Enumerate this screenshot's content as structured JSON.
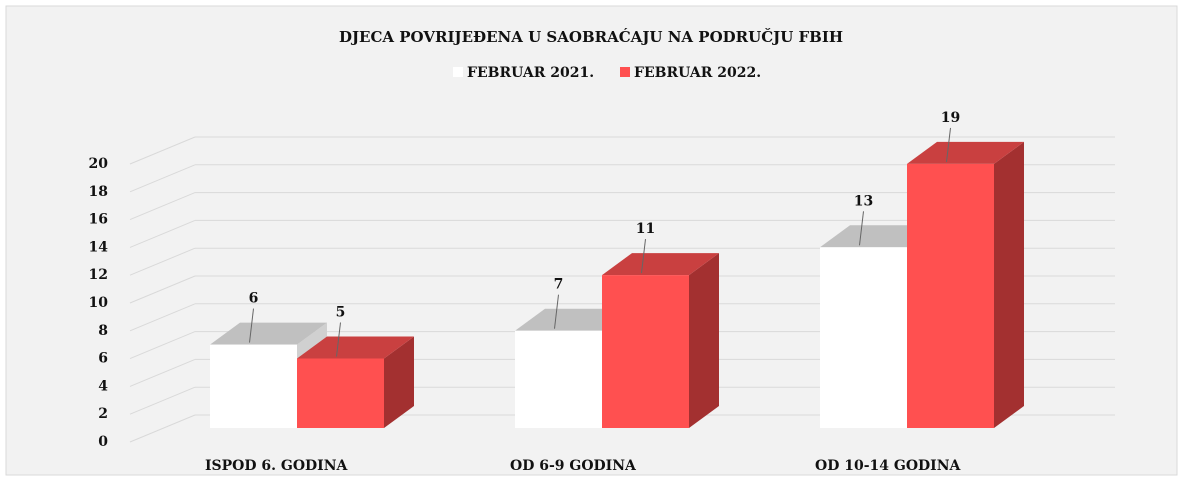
{
  "chart_data": {
    "type": "bar3d",
    "title": "DJECA POVRIJEĐENA U SAOBRAĆAJU NA PODRUČJU FBIH",
    "categories": [
      "ISPOD 6. GODINA",
      "OD 6-9 GODINA",
      "OD 10-14 GODINA"
    ],
    "series": [
      {
        "name": "FEBRUAR 2021.",
        "color": "#ffffff",
        "values": [
          6,
          7,
          13
        ]
      },
      {
        "name": "FEBRUAR  2022.",
        "color": "#ff5050",
        "values": [
          5,
          11,
          19
        ]
      }
    ],
    "ylim": [
      0,
      20
    ],
    "yticks": [
      0,
      2,
      4,
      6,
      8,
      10,
      12,
      14,
      16,
      18,
      20
    ],
    "grid": true
  }
}
